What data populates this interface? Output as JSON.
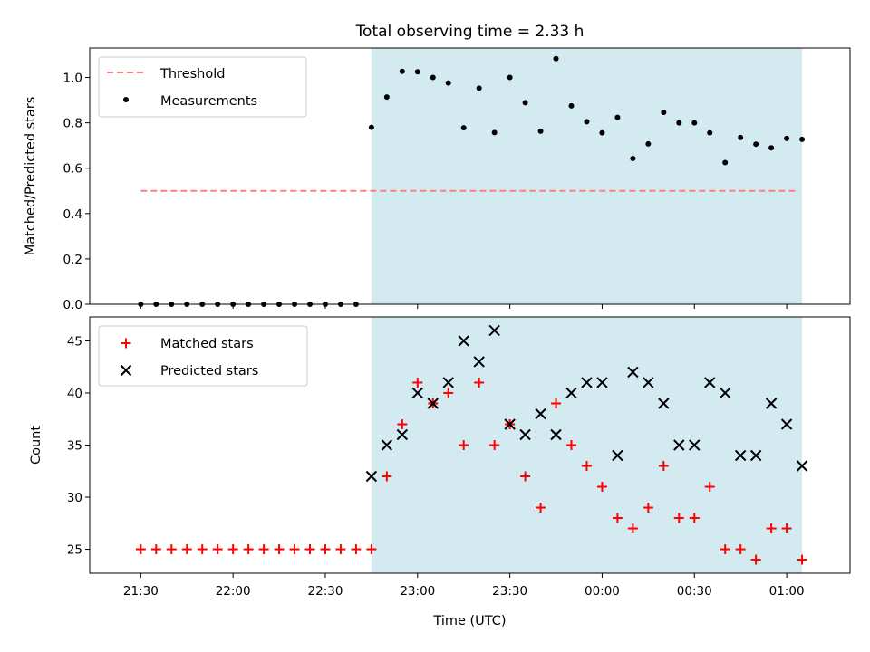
{
  "chart_data": [
    {
      "type": "scatter",
      "title": "Total observing time = 2.33 h",
      "xlabel": "",
      "ylabel": "Matched/Predicted stars",
      "ylim": [
        0,
        1.13
      ],
      "yticks": [
        "0.0",
        "0.2",
        "0.4",
        "0.6",
        "0.8",
        "1.0"
      ],
      "x_minutes_ticks": [
        "21:30",
        "22:00",
        "22:30",
        "23:00",
        "23:30",
        "00:00",
        "00:30",
        "01:00"
      ],
      "shaded_region": {
        "from": "22:45",
        "to": "01:05",
        "color": "#d4eaf1"
      },
      "legend": {
        "position": "upper left",
        "items": [
          "Threshold",
          "Measurements"
        ]
      },
      "series": [
        {
          "name": "Threshold",
          "style": "dashed-line",
          "color": "#ff7f7f",
          "x": [
            "21:30",
            "01:04"
          ],
          "y": [
            0.5,
            0.5
          ]
        },
        {
          "name": "Measurements",
          "style": "dot",
          "color": "#000000",
          "x": [
            "21:30",
            "21:35",
            "21:40",
            "21:45",
            "21:50",
            "21:55",
            "22:00",
            "22:05",
            "22:10",
            "22:15",
            "22:20",
            "22:25",
            "22:30",
            "22:35",
            "22:40",
            "22:45",
            "22:50",
            "22:55",
            "23:00",
            "23:05",
            "23:10",
            "23:15",
            "23:20",
            "23:25",
            "23:30",
            "23:35",
            "23:40",
            "23:45",
            "23:50",
            "23:55",
            "00:00",
            "00:05",
            "00:10",
            "00:15",
            "00:20",
            "00:25",
            "00:30",
            "00:35",
            "00:40",
            "00:45",
            "00:50",
            "00:55",
            "01:00",
            "01:05"
          ],
          "y": [
            0,
            0,
            0,
            0,
            0,
            0,
            0,
            0,
            0,
            0,
            0,
            0,
            0,
            0,
            0,
            0.78,
            0.914,
            1.027,
            1.025,
            1.0,
            0.976,
            0.778,
            0.953,
            0.757,
            1.0,
            0.889,
            0.763,
            1.083,
            0.875,
            0.805,
            0.756,
            0.824,
            0.643,
            0.707,
            0.846,
            0.8,
            0.8,
            0.756,
            0.625,
            0.735,
            0.706,
            0.69,
            0.731,
            0.727
          ]
        }
      ]
    },
    {
      "type": "scatter",
      "title": "",
      "xlabel": "Time (UTC)",
      "ylabel": "Count",
      "ylim": [
        22.7,
        47.3
      ],
      "yticks": [
        "25",
        "30",
        "35",
        "40",
        "45"
      ],
      "x_ticks": [
        "21:30",
        "22:00",
        "22:30",
        "23:00",
        "23:30",
        "00:00",
        "00:30",
        "01:00"
      ],
      "shaded_region": {
        "from": "22:45",
        "to": "01:05",
        "color": "#d4eaf1"
      },
      "legend": {
        "position": "upper left",
        "items": [
          "Matched stars",
          "Predicted stars"
        ]
      },
      "series": [
        {
          "name": "Matched stars",
          "marker": "plus",
          "color": "#ff0000",
          "x": [
            "21:30",
            "21:35",
            "21:40",
            "21:45",
            "21:50",
            "21:55",
            "22:00",
            "22:05",
            "22:10",
            "22:15",
            "22:20",
            "22:25",
            "22:30",
            "22:35",
            "22:40",
            "22:45",
            "22:50",
            "22:55",
            "23:00",
            "23:05",
            "23:10",
            "23:15",
            "23:20",
            "23:25",
            "23:30",
            "23:35",
            "23:40",
            "23:45",
            "23:50",
            "23:55",
            "00:00",
            "00:05",
            "00:10",
            "00:15",
            "00:20",
            "00:25",
            "00:30",
            "00:35",
            "00:40",
            "00:45",
            "00:50",
            "00:55",
            "01:00",
            "01:05"
          ],
          "y": [
            25,
            25,
            25,
            25,
            25,
            25,
            25,
            25,
            25,
            25,
            25,
            25,
            25,
            25,
            25,
            25,
            32,
            37,
            41,
            39,
            40,
            35,
            41,
            35,
            37,
            32,
            29,
            39,
            35,
            33,
            31,
            28,
            27,
            29,
            33,
            28,
            28,
            31,
            25,
            25,
            24,
            27,
            27,
            24
          ]
        },
        {
          "name": "Predicted stars",
          "marker": "x",
          "color": "#000000",
          "x": [
            "22:45",
            "22:50",
            "22:55",
            "23:00",
            "23:05",
            "23:10",
            "23:15",
            "23:20",
            "23:25",
            "23:30",
            "23:35",
            "23:40",
            "23:45",
            "23:50",
            "23:55",
            "00:00",
            "00:05",
            "00:10",
            "00:15",
            "00:20",
            "00:25",
            "00:30",
            "00:35",
            "00:40",
            "00:45",
            "00:50",
            "00:55",
            "01:00",
            "01:05"
          ],
          "y": [
            32,
            35,
            36,
            40,
            39,
            41,
            45,
            43,
            46,
            37,
            36,
            38,
            36,
            40,
            41,
            41,
            34,
            42,
            41,
            39,
            35,
            35,
            41,
            40,
            34,
            34,
            39,
            37,
            33
          ]
        }
      ]
    }
  ]
}
